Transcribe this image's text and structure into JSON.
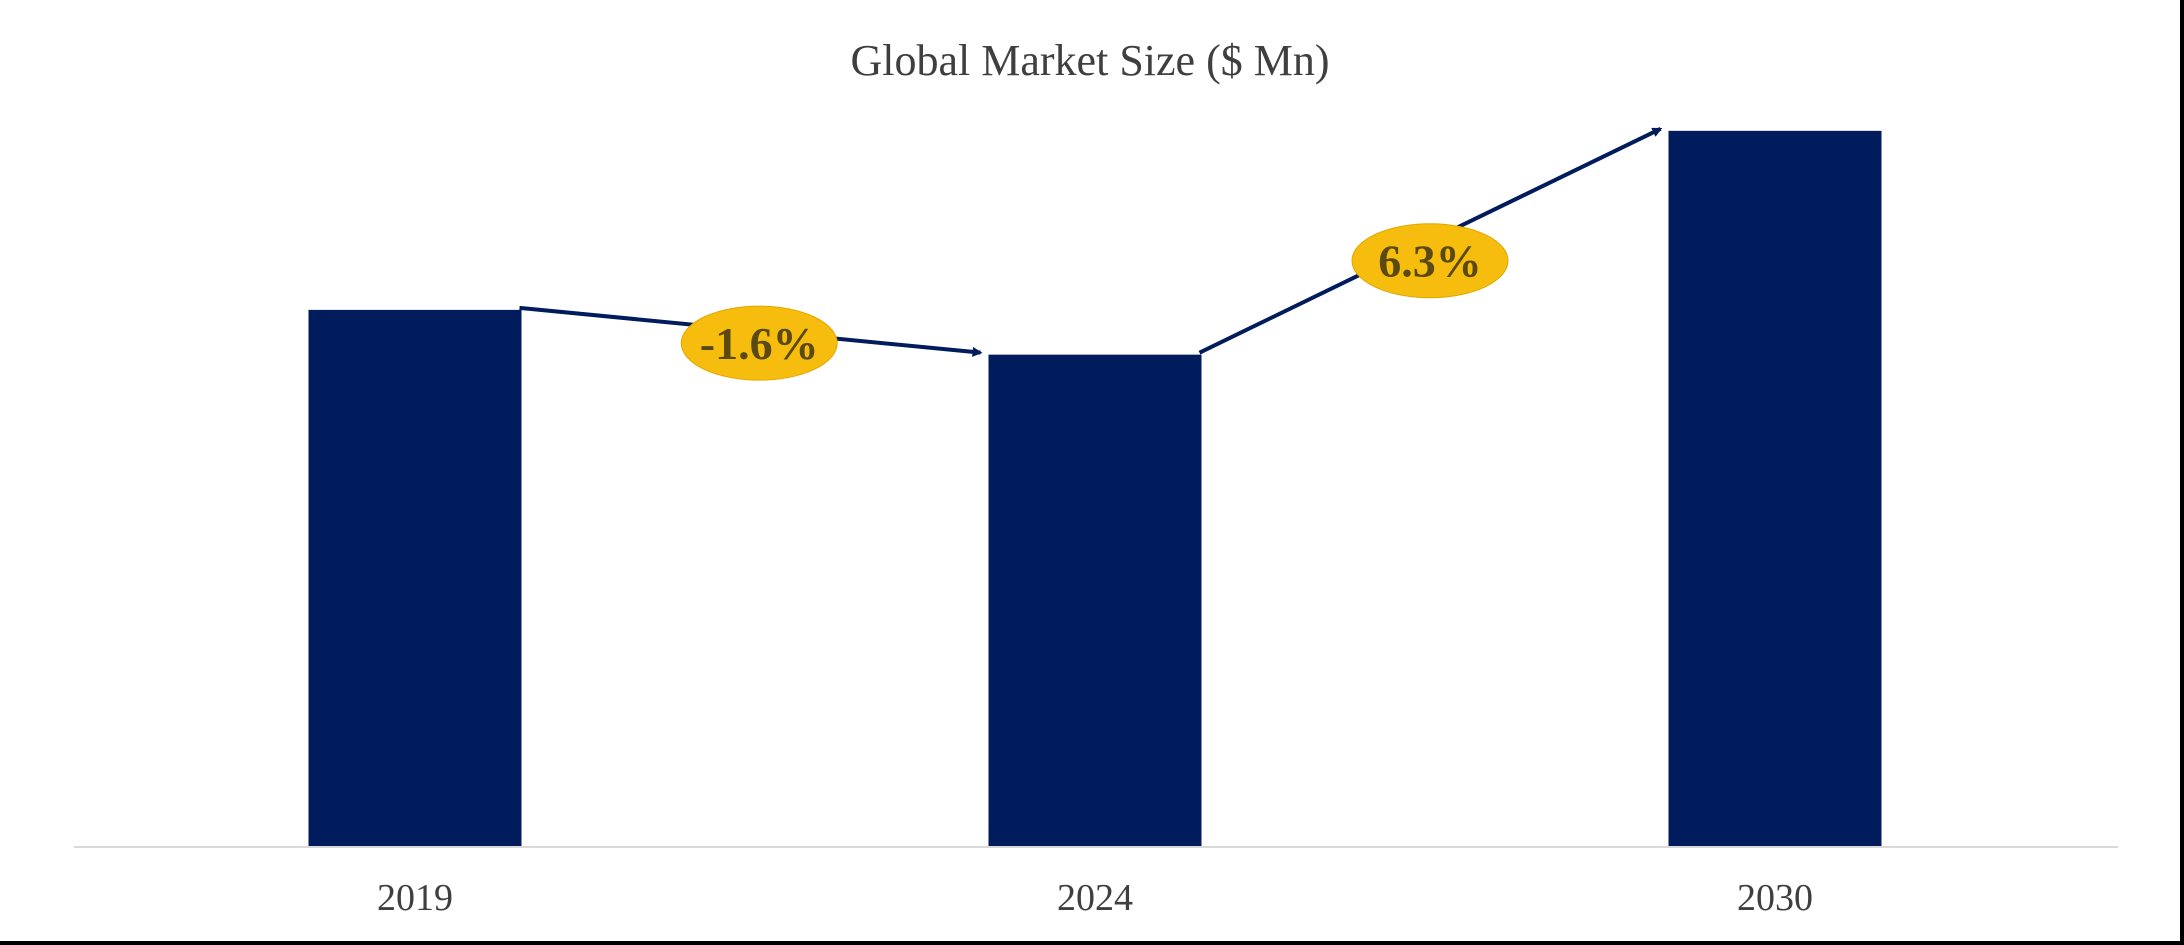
{
  "chart_data": {
    "type": "bar",
    "title": "Global Market Size ($ Mn)",
    "categories": [
      "2019",
      "2024",
      "2030"
    ],
    "values": [
      72,
      66,
      96
    ],
    "ylim": [
      0,
      100
    ],
    "xlabel": "",
    "ylabel": "",
    "grid": false,
    "colors": {
      "bar": "#001c5c",
      "arrow": "#001c5c",
      "badge": "#f6bd0f",
      "badge_text": "#5a4a12",
      "axis": "#d9d9d9"
    },
    "annotations": [
      {
        "from": "2019",
        "to": "2024",
        "label": "-1.6%"
      },
      {
        "from": "2024",
        "to": "2030",
        "label": "6.3%"
      }
    ]
  }
}
